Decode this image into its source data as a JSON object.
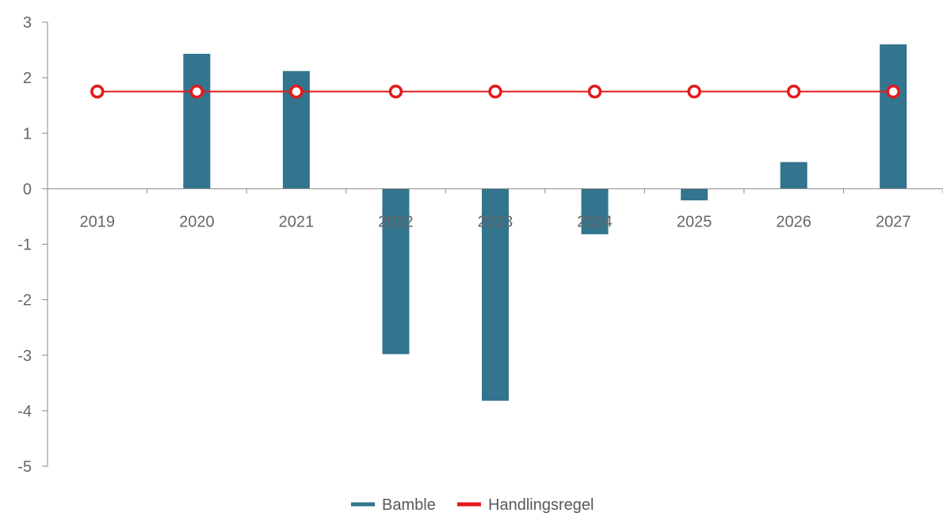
{
  "chart_data": {
    "type": "bar",
    "categories": [
      "2019",
      "2020",
      "2021",
      "2022",
      "2023",
      "2024",
      "2025",
      "2026",
      "2027"
    ],
    "series": [
      {
        "name": "Bamble",
        "type": "bar",
        "values": [
          0,
          2.43,
          2.12,
          -2.98,
          -3.82,
          -0.82,
          -0.21,
          0.48,
          2.6
        ]
      },
      {
        "name": "Handlingsregel",
        "type": "line",
        "values": [
          1.75,
          1.75,
          1.75,
          1.75,
          1.75,
          1.75,
          1.75,
          1.75,
          1.75
        ]
      }
    ],
    "y_ticks": [
      "3",
      "2",
      "1",
      "0",
      "-1",
      "-2",
      "-3",
      "-4",
      "-5"
    ],
    "ylim": [
      -5,
      3
    ],
    "grid": false,
    "legend_position": "bottom",
    "colors": {
      "bar": "#33748e",
      "line": "#e41a1c",
      "axis": "#888888",
      "tick_text": "#666666"
    }
  }
}
